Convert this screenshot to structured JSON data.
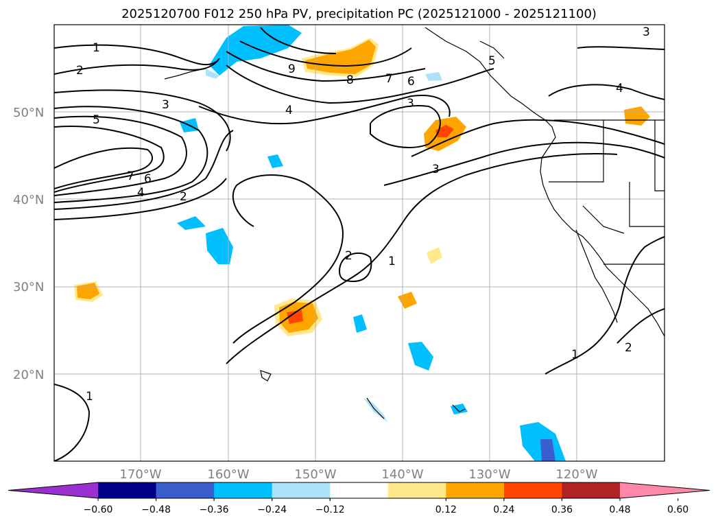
{
  "title": "2025120700 F012 250 hPa PV, precipitation PC (2025121000 - 2025121100)",
  "lat_labels": [
    "50°N",
    "40°N",
    "30°N",
    "20°N"
  ],
  "lon_labels": [
    "170°W",
    "160°W",
    "150°W",
    "140°W",
    "130°W",
    "120°W"
  ],
  "contour_labels": [
    "1",
    "2",
    "3",
    "5",
    "7",
    "6",
    "4",
    "2",
    "9",
    "8",
    "7",
    "6",
    "5",
    "3",
    "4",
    "3",
    "2",
    "1",
    "1",
    "2",
    "1",
    "4",
    "3"
  ],
  "colorbar": {
    "colors": [
      "#9b30d0",
      "#00008b",
      "#3a5fcd",
      "#00bfff",
      "#ade2fa",
      "#ffffff",
      "#ffe98a",
      "#ffa500",
      "#ff4500",
      "#b22222",
      "#ff87a8"
    ],
    "ticks": [
      "−0.60",
      "−0.48",
      "−0.36",
      "−0.24",
      "−0.12",
      "0.12",
      "0.24",
      "0.36",
      "0.48",
      "0.60"
    ]
  }
}
